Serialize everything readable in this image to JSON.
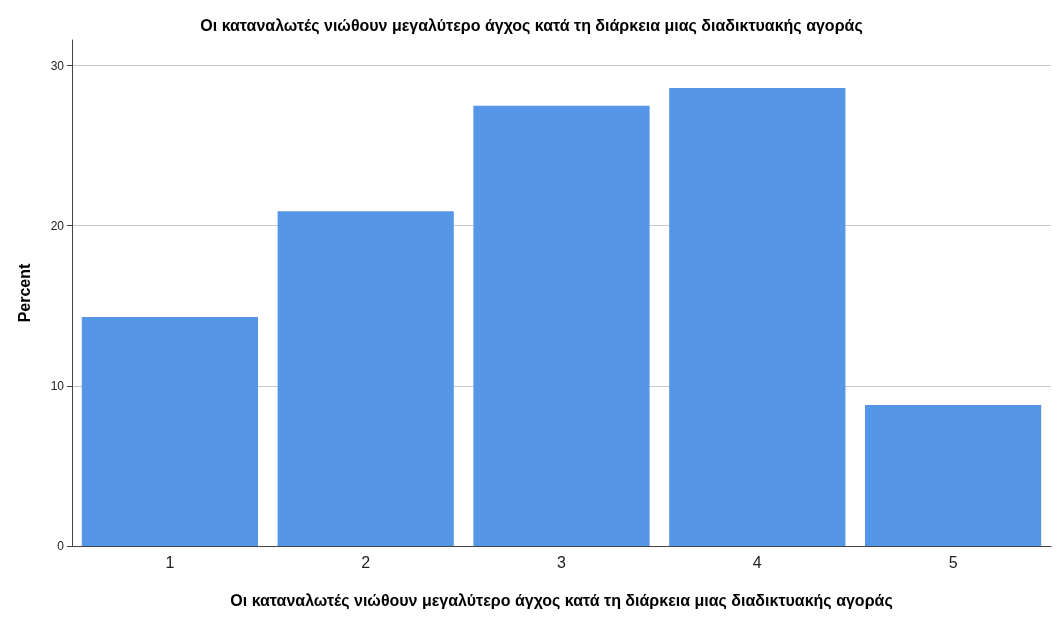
{
  "chart_data": {
    "type": "bar",
    "title": "Οι καταναλωτές νιώθουν μεγαλύτερο άγχος κατά τη διάρκεια μιας διαδικτυακής αγοράς",
    "xlabel": "Οι καταναλωτές νιώθουν μεγαλύτερο άγχος κατά τη διάρκεια μιας διαδικτυακής αγοράς",
    "ylabel": "Percent",
    "categories": [
      "1",
      "2",
      "3",
      "4",
      "5"
    ],
    "values": [
      14.3,
      20.9,
      27.5,
      28.6,
      8.8
    ],
    "color": "#5596e6",
    "ylim": [
      0,
      31.6
    ],
    "yticks": [
      0,
      10,
      20,
      30
    ],
    "grid": "y"
  }
}
